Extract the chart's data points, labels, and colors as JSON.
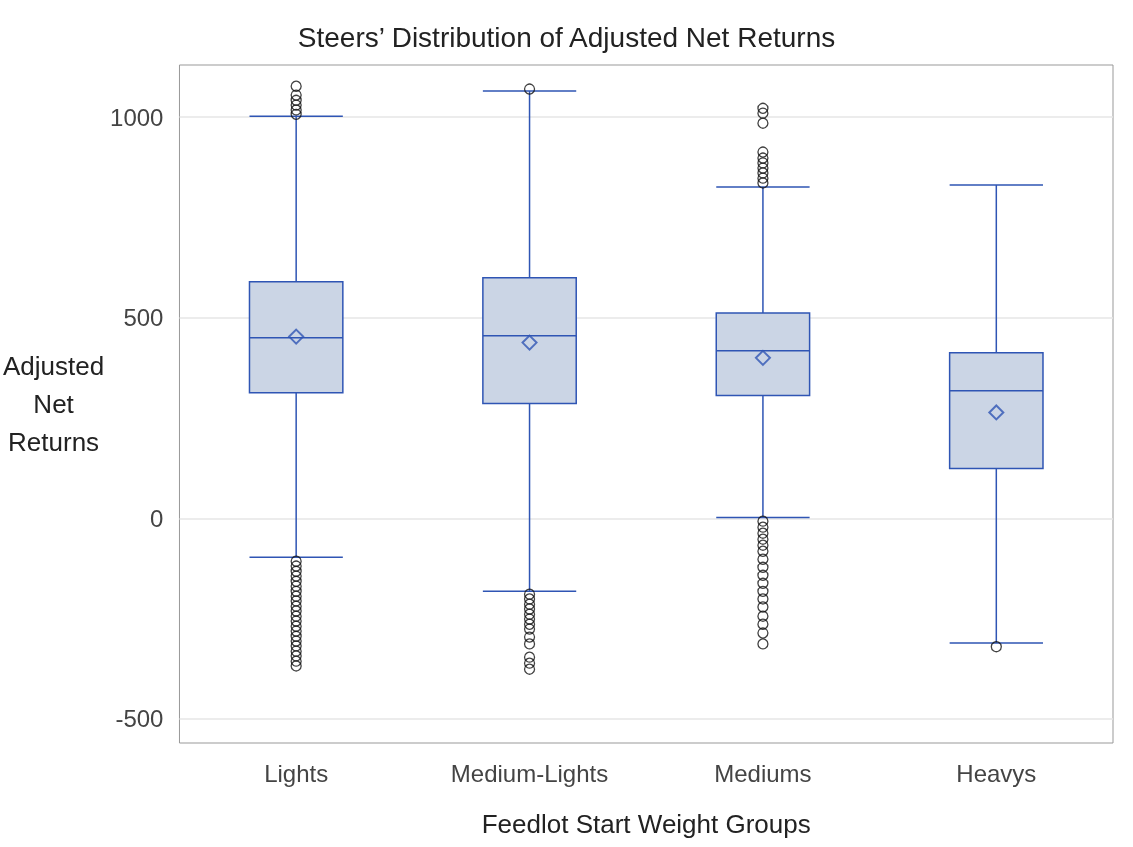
{
  "chart_data": {
    "type": "box",
    "title": "Steers’ Distribution of Adjusted Net Returns",
    "xlabel": "Feedlot Start Weight Groups",
    "ylabel": "Adjusted Net Returns",
    "categories": [
      "Lights",
      "Medium-Lights",
      "Mediums",
      "Heavys"
    ],
    "color": "#cbd5e5",
    "boxes": [
      {
        "low": -97,
        "q1": 313,
        "median": 450,
        "q3": 590,
        "high": 1002,
        "mean": 453,
        "outliers": [
          1077,
          1055,
          1042,
          1030,
          1018,
          1007,
          -107,
          -119,
          -132,
          -144,
          -157,
          -169,
          -182,
          -194,
          -206,
          -219,
          -231,
          -244,
          -256,
          -269,
          -281,
          -294,
          -306,
          -318,
          -331,
          -343,
          -356,
          -368
        ]
      },
      {
        "low": -182,
        "q1": 286,
        "median": 455,
        "q3": 600,
        "high": 1065,
        "mean": 438,
        "outliers": [
          1070,
          -189,
          -201,
          -214,
          -226,
          -239,
          -251,
          -264,
          -276,
          -296,
          -313,
          -346,
          -361,
          -376
        ]
      },
      {
        "low": 2,
        "q1": 306,
        "median": 418,
        "q3": 512,
        "high": 826,
        "mean": 400,
        "outliers": [
          1022,
          1010,
          985,
          913,
          898,
          886,
          873,
          861,
          848,
          836,
          -7,
          -22,
          -37,
          -52,
          -67,
          -82,
          -102,
          -122,
          -142,
          -162,
          -182,
          -201,
          -221,
          -244,
          -264,
          -286,
          -313
        ]
      },
      {
        "low": -311,
        "q1": 124,
        "median": 318,
        "q3": 413,
        "high": 831,
        "mean": 264,
        "outliers": [
          -320
        ]
      }
    ],
    "ylim": [
      -560,
      1130
    ],
    "yticks": [
      -500,
      0,
      500,
      1000
    ],
    "grid": "y",
    "marker": "diamond"
  }
}
